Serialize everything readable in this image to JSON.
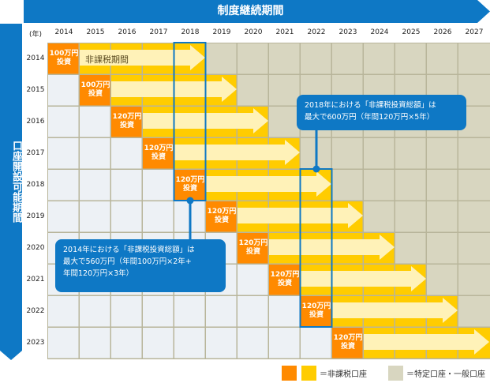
{
  "banner": {
    "title": "制度継続期間"
  },
  "side_label": "口座開設可能期間",
  "year_unit": "(年)",
  "years": [
    "2014",
    "2015",
    "2016",
    "2017",
    "2018",
    "2019",
    "2020",
    "2021",
    "2022",
    "2023",
    "2024",
    "2025",
    "2026",
    "2027"
  ],
  "rows": [
    {
      "year": "2014",
      "amount": "100万円",
      "action": "投資"
    },
    {
      "year": "2015",
      "amount": "100万円",
      "action": "投資"
    },
    {
      "year": "2016",
      "amount": "120万円",
      "action": "投資"
    },
    {
      "year": "2017",
      "amount": "120万円",
      "action": "投資"
    },
    {
      "year": "2018",
      "amount": "120万円",
      "action": "投資"
    },
    {
      "year": "2019",
      "amount": "120万円",
      "action": "投資"
    },
    {
      "year": "2020",
      "amount": "120万円",
      "action": "投資"
    },
    {
      "year": "2021",
      "amount": "120万円",
      "action": "投資"
    },
    {
      "year": "2022",
      "amount": "120万円",
      "action": "投資"
    },
    {
      "year": "2023",
      "amount": "120万円",
      "action": "投資"
    }
  ],
  "non_taxable_period_label": "非課税期間",
  "callouts": {
    "y2014": {
      "line1": "2014年における「非課税投資総額」は",
      "line2": "最大で560万円（年間100万円×2年+",
      "line3": "年間120万円×3年）"
    },
    "y2018": {
      "line1": "2018年における「非課税投資総額」は",
      "line2": "最大で600万円（年間120万円×5年）"
    }
  },
  "legend": {
    "non_taxable": "＝非課税口座",
    "taxable": "＝特定口座・一般口座"
  },
  "colors": {
    "blue": "#0e78c5",
    "orange": "#ff8a00",
    "yellow": "#ffcc00",
    "light_yellow": "#fff2b8",
    "gray": "#d8d6c0",
    "empty": "#edf1f5"
  }
}
